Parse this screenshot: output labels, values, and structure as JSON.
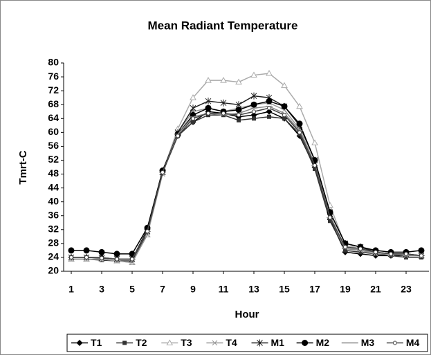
{
  "chart_data": {
    "type": "line",
    "title": "Mean Radiant Temperature",
    "x_label": "Hour",
    "y_label": "Tmrt-C",
    "x": [
      1,
      2,
      3,
      4,
      5,
      6,
      7,
      8,
      9,
      10,
      11,
      12,
      13,
      14,
      15,
      16,
      17,
      18,
      19,
      20,
      21,
      22,
      23,
      24
    ],
    "xlim": [
      0.5,
      24.5
    ],
    "xticks": [
      1,
      3,
      5,
      7,
      9,
      11,
      13,
      15,
      17,
      19,
      21,
      23
    ],
    "ylim": [
      20,
      80
    ],
    "yticks": [
      20,
      24,
      28,
      32,
      36,
      40,
      44,
      48,
      52,
      56,
      60,
      64,
      68,
      72,
      76,
      80
    ],
    "legend": "bottom",
    "series": [
      {
        "name": "T1",
        "color": "#000000",
        "marker": "diamond",
        "values": [
          24,
          24,
          24,
          23.5,
          23.5,
          32,
          49,
          59,
          63,
          66,
          65.5,
          64.5,
          65,
          66,
          64,
          59,
          50,
          35,
          25.5,
          25,
          24.5,
          24.5,
          24.5,
          24.5
        ]
      },
      {
        "name": "T2",
        "color": "#333333",
        "marker": "square",
        "values": [
          23.5,
          23.5,
          23.2,
          23,
          23,
          31,
          48.5,
          59,
          63,
          65,
          65,
          63.5,
          64,
          64.5,
          64,
          59.5,
          49.5,
          34.5,
          26,
          25.5,
          25,
          24.5,
          24,
          24
        ]
      },
      {
        "name": "T3",
        "color": "#aaaaaa",
        "marker": "triangle",
        "values": [
          23.5,
          23.5,
          23.5,
          23,
          22.5,
          30.5,
          48.5,
          61,
          70,
          75,
          75,
          74.5,
          76.5,
          77,
          73.5,
          67.5,
          57,
          39,
          27.5,
          26.5,
          25.5,
          25,
          25,
          24.5
        ]
      },
      {
        "name": "T4",
        "color": "#999999",
        "marker": "x",
        "values": [
          23.5,
          23.5,
          23.5,
          23,
          22.5,
          30.5,
          48,
          60,
          66,
          67,
          66,
          67,
          68,
          68.5,
          66.5,
          61,
          51,
          36,
          27,
          26,
          25,
          25,
          24.5,
          24.5
        ]
      },
      {
        "name": "M1",
        "color": "#222222",
        "marker": "star",
        "values": [
          24,
          24,
          23.8,
          23.5,
          23.5,
          31.5,
          48.5,
          60,
          67,
          69,
          68.5,
          68,
          70.5,
          70,
          67.5,
          62,
          52,
          37,
          28,
          27,
          25.5,
          25,
          25,
          24.5
        ]
      },
      {
        "name": "M2",
        "color": "#000000",
        "marker": "circle",
        "values": [
          26,
          26,
          25.5,
          25,
          25,
          32.5,
          49,
          59.5,
          65,
          67,
          66,
          66.5,
          68,
          69,
          67.5,
          62.5,
          52,
          37,
          28,
          27,
          26,
          25.5,
          25.5,
          26
        ]
      },
      {
        "name": "M3",
        "color": "#888888",
        "marker": "plus",
        "values": [
          24,
          24,
          24,
          23.5,
          23.5,
          31.5,
          48.5,
          59.5,
          64.5,
          65.5,
          65,
          65.5,
          67,
          67.5,
          65.5,
          60.5,
          50.5,
          35.5,
          26.5,
          26,
          25.5,
          25,
          24.5,
          24.5
        ]
      },
      {
        "name": "M4",
        "color": "#444444",
        "marker": "dot",
        "values": [
          24,
          24,
          23.8,
          23.5,
          23.5,
          31.5,
          48.5,
          59,
          64,
          65.5,
          65.5,
          65,
          66,
          67,
          65,
          60,
          50.5,
          35.5,
          27,
          26.5,
          25.5,
          25,
          25,
          24.5
        ]
      }
    ]
  }
}
